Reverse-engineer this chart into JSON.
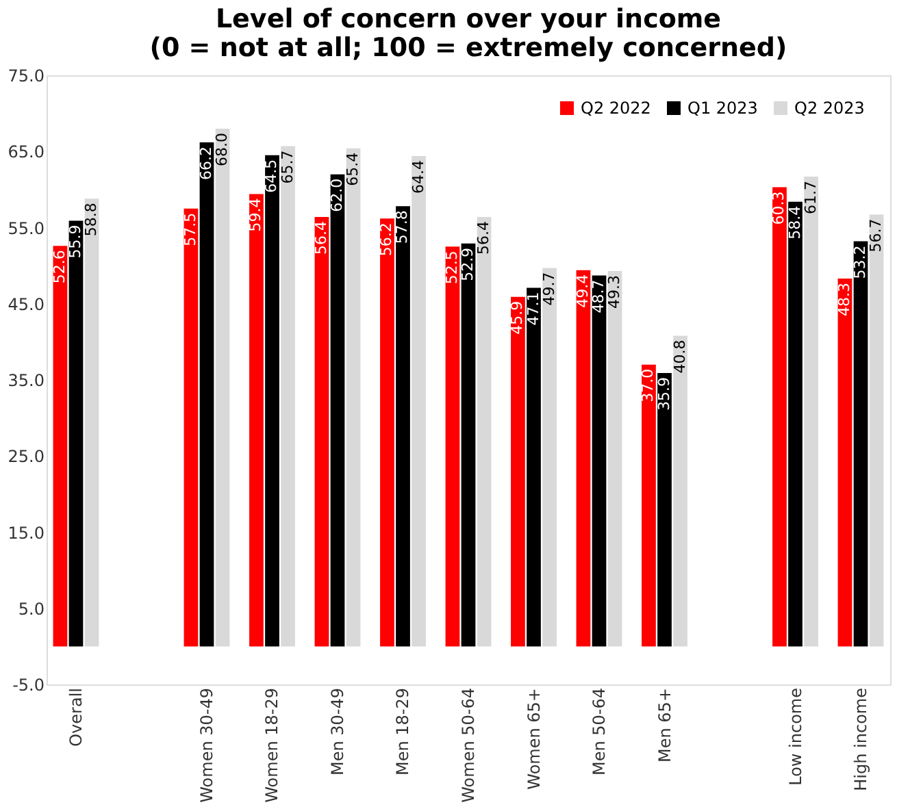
{
  "chart_data": {
    "type": "bar",
    "title": "Level of concern over your income\n(0 = not at all; 100 = extremely concerned)",
    "categories": [
      "Overall",
      null,
      "Women 30-49",
      "Women 18-29",
      "Men 30-49",
      "Men 18-29",
      "Women 50-64",
      "Women 65+",
      "Men 50-64",
      "Men 65+",
      null,
      "Low income",
      "High income"
    ],
    "series": [
      {
        "name": "Q2 2022",
        "color": "#ff0000",
        "values": [
          52.6,
          null,
          57.5,
          59.4,
          56.4,
          56.2,
          52.5,
          45.9,
          49.4,
          37.0,
          null,
          60.3,
          48.3
        ],
        "value_labels": [
          "52.6",
          null,
          "57.5",
          "59.4",
          "56.4",
          "56.2",
          "52.5",
          "45.9",
          "49.4",
          "37.0",
          null,
          "60.3",
          "48.3"
        ]
      },
      {
        "name": "Q1 2023",
        "color": "#000000",
        "values": [
          55.9,
          null,
          66.2,
          64.5,
          62.0,
          57.8,
          52.9,
          47.1,
          48.7,
          35.9,
          null,
          58.4,
          53.2
        ],
        "value_labels": [
          "55.9",
          null,
          "66.2",
          "64.5",
          "62.0",
          "57.8",
          "52.9",
          "47.1",
          "48.7",
          "35.9",
          null,
          "58.4",
          "53.2"
        ]
      },
      {
        "name": "Q2 2023",
        "color": "#d9d9d9",
        "values": [
          58.8,
          null,
          68.0,
          65.7,
          65.4,
          64.4,
          56.4,
          49.7,
          49.3,
          40.8,
          null,
          61.7,
          56.7
        ],
        "value_labels": [
          "58.8",
          null,
          "68.0",
          "65.7",
          "65.4",
          "64.4",
          "56.4",
          "49.7",
          "49.3",
          "40.8",
          null,
          "61.7",
          "56.7"
        ]
      }
    ],
    "ylim": [
      -5,
      75
    ],
    "yticks": [
      {
        "value": -5,
        "label": "-5.0"
      },
      {
        "value": 5,
        "label": "5.0"
      },
      {
        "value": 15,
        "label": "15.0"
      },
      {
        "value": 25,
        "label": "25.0"
      },
      {
        "value": 35,
        "label": "35.0"
      },
      {
        "value": 45,
        "label": "45.0"
      },
      {
        "value": 55,
        "label": "55.0"
      },
      {
        "value": 65,
        "label": "65.0"
      },
      {
        "value": 75,
        "label": "75.0"
      }
    ],
    "legend": "top right",
    "grid": false
  }
}
